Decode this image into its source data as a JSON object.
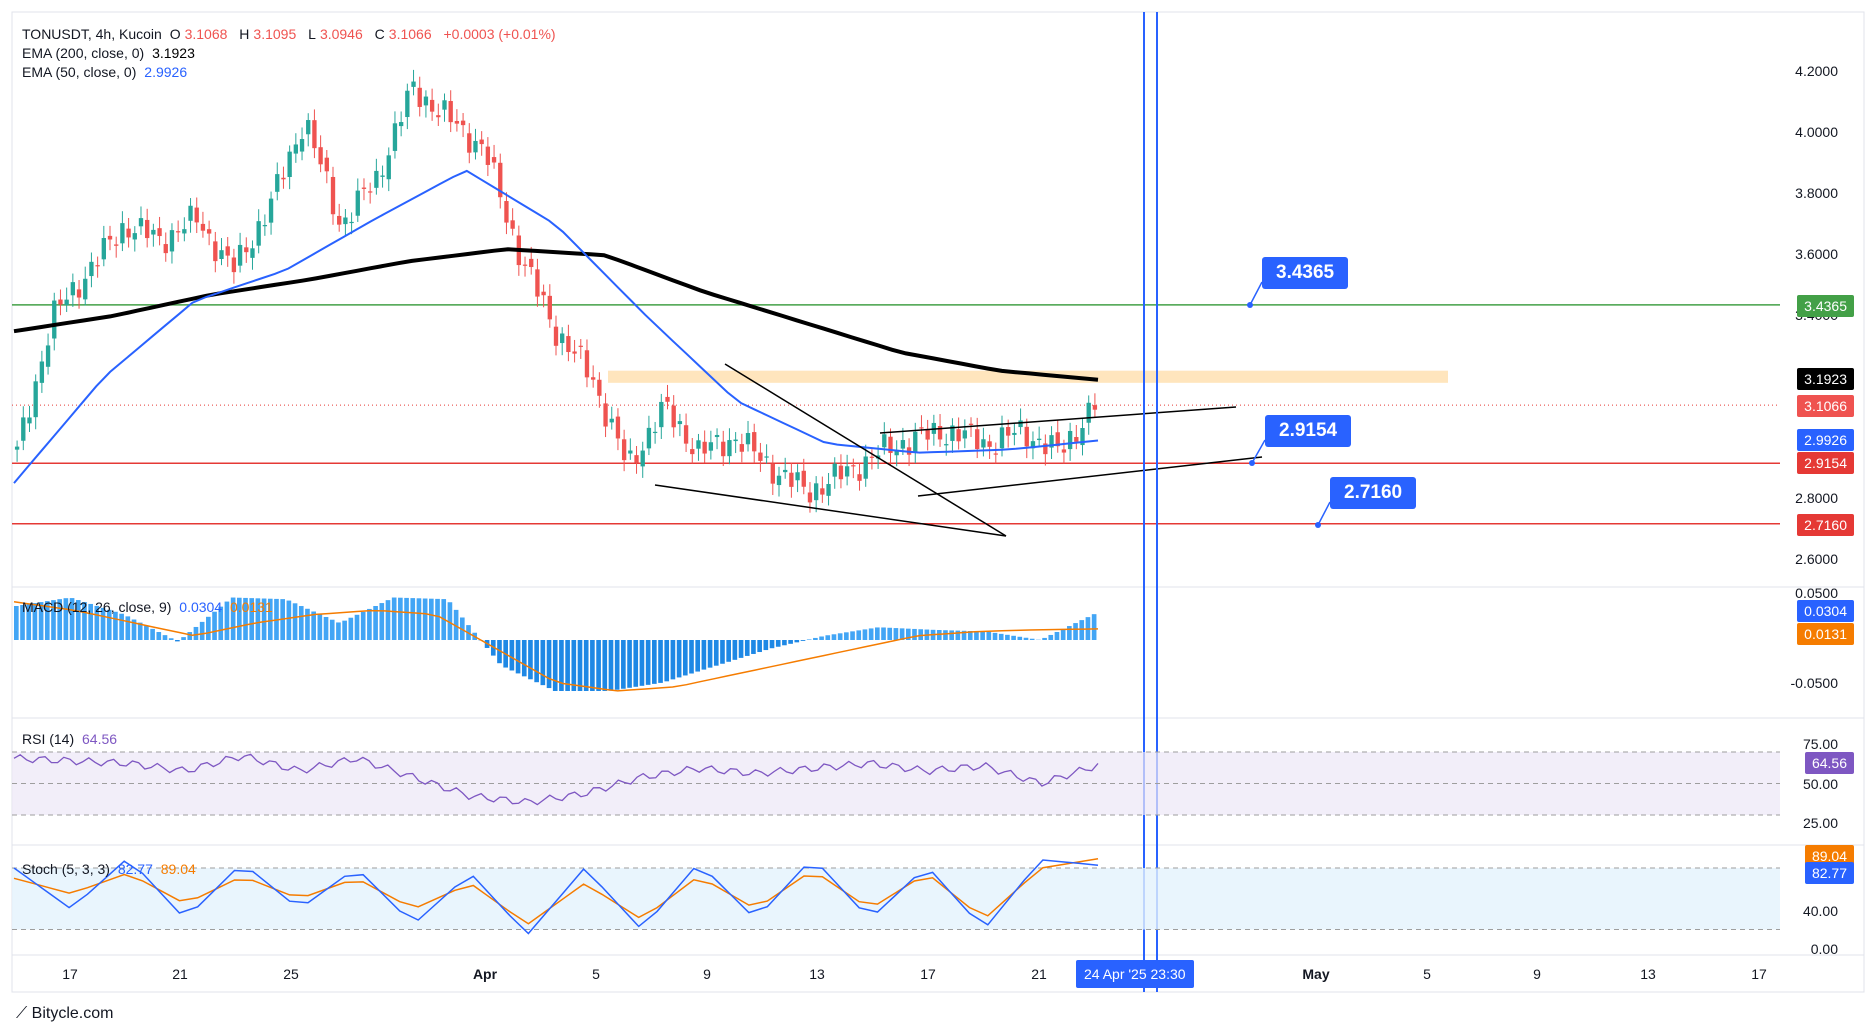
{
  "header": {
    "symbol_line": "TONUSDT, 4h, Kucoin",
    "ohlc": {
      "o_label": "O",
      "o": "3.1068",
      "h_label": "H",
      "h": "3.1095",
      "l_label": "L",
      "l": "3.0946",
      "c_label": "C",
      "c": "3.1066",
      "chg": "+0.0003 (+0.01%)"
    },
    "ema200": {
      "label": "EMA (200, close, 0)",
      "value": "3.1923"
    },
    "ema50": {
      "label": "EMA (50, close, 0)",
      "value": "2.9926"
    }
  },
  "indicators": {
    "macd": {
      "label": "MACD (12, 26, close, 9)",
      "hist": "0.0304",
      "signal": "0.0131"
    },
    "rsi": {
      "label": "RSI (14)",
      "value": "64.56"
    },
    "stoch": {
      "label": "Stoch (5, 3, 3)",
      "k": "82.77",
      "d": "89.04"
    }
  },
  "price_labels": {
    "ema200": "3.1923",
    "last": "3.1066",
    "ema50": "2.9926",
    "s1": "2.9154",
    "s2": "2.7160",
    "r1": "3.4365",
    "macd_hist": "0.0304",
    "macd_signal": "0.0131",
    "rsi": "64.56",
    "stoch_d": "89.04",
    "stoch_k": "82.77"
  },
  "callouts": {
    "r1": "3.4365",
    "s1": "2.9154",
    "s2": "2.7160"
  },
  "axis": {
    "y_price": [
      "4.2000",
      "4.0000",
      "3.8000",
      "3.6000",
      "3.4000",
      "2.8000",
      "2.6000"
    ],
    "y_macd": [
      "0.0500",
      "-0.0500"
    ],
    "y_rsi": [
      "75.00",
      "50.00",
      "25.00"
    ],
    "y_stoch": [
      "40.00",
      "0.00"
    ],
    "x": [
      "17",
      "21",
      "25",
      "Apr",
      "5",
      "9",
      "13",
      "17",
      "21",
      "May",
      "5",
      "9",
      "13",
      "17"
    ],
    "x_selected": "24 Apr '25   23:30"
  },
  "brand": "Bitycle.com",
  "colors": {
    "up": "#26a69a",
    "down": "#ef5350",
    "ema50": "#2962ff",
    "ema200": "#000000",
    "support": "#e53935",
    "resistance": "#43a047",
    "zone": "#ffe0b2",
    "accent": "#2962ff",
    "macd_signal": "#f57c00",
    "rsi_line": "#7e57c2",
    "stoch_d": "#f57c00"
  },
  "chart_data": {
    "type": "candlestick",
    "title": "TONUSDT, 4h, Kucoin",
    "x_dates": [
      "Mar 17",
      "Mar 21",
      "Mar 25",
      "Apr 1",
      "Apr 5",
      "Apr 9",
      "Apr 13",
      "Apr 17",
      "Apr 21",
      "Apr 24"
    ],
    "close_path": [
      2.95,
      3.4,
      3.55,
      3.7,
      3.65,
      3.72,
      3.55,
      3.75,
      4.05,
      3.7,
      3.85,
      4.15,
      4.05,
      3.95,
      3.6,
      3.35,
      3.2,
      2.9,
      3.1,
      2.95,
      3.0,
      2.9,
      2.82,
      2.88,
      2.95,
      3.0,
      3.02,
      2.98,
      3.02,
      2.95,
      3.1066
    ],
    "ylim": [
      2.55,
      4.25
    ],
    "ema200_path": [
      3.35,
      3.4,
      3.47,
      3.52,
      3.58,
      3.62,
      3.6,
      3.48,
      3.38,
      3.28,
      3.22,
      3.19
    ],
    "ema50_path": [
      2.85,
      3.2,
      3.45,
      3.55,
      3.72,
      3.88,
      3.7,
      3.4,
      3.12,
      2.98,
      2.95,
      2.96,
      2.99
    ],
    "levels": {
      "resistance": 3.4365,
      "support_1": 2.9154,
      "support_2": 2.716
    },
    "supply_zone": [
      3.18,
      3.22
    ],
    "last_price": 3.1066,
    "macd_hist_path": [
      0.04,
      0.05,
      0.03,
      -0.002,
      0.05,
      0.048,
      0.02,
      0.05,
      0.048,
      -0.03,
      -0.06,
      -0.06,
      -0.05,
      -0.03,
      -0.01,
      0.005,
      0.015,
      0.012,
      0.01,
      0.0,
      0.0304
    ],
    "macd_signal_path": [
      0.045,
      0.035,
      0.02,
      0.005,
      0.02,
      0.03,
      0.035,
      0.03,
      -0.01,
      -0.05,
      -0.06,
      -0.055,
      -0.04,
      -0.025,
      -0.01,
      0.005,
      0.01,
      0.012,
      0.0131
    ],
    "rsi_path": [
      70,
      68,
      66,
      60,
      72,
      60,
      70,
      55,
      40,
      35,
      42,
      55,
      62,
      58,
      62,
      66,
      60,
      64,
      50,
      64.56
    ],
    "stoch_k_path": [
      80,
      40,
      90,
      30,
      85,
      40,
      80,
      25,
      75,
      15,
      80,
      20,
      85,
      30,
      90,
      30,
      82,
      20,
      88,
      82.77
    ],
    "stoch_d_path": [
      70,
      55,
      75,
      45,
      72,
      50,
      70,
      40,
      65,
      25,
      65,
      30,
      72,
      40,
      78,
      40,
      75,
      30,
      80,
      89.04
    ]
  }
}
